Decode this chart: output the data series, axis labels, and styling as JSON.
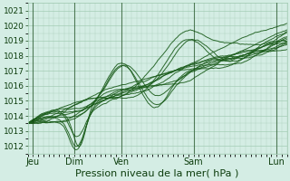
{
  "xlabel": "Pression niveau de la mer( hPa )",
  "ylim": [
    1011.5,
    1021.5
  ],
  "yticks": [
    1012,
    1013,
    1014,
    1015,
    1016,
    1017,
    1018,
    1019,
    1020,
    1021
  ],
  "xlim": [
    0,
    100
  ],
  "xtick_positions": [
    2,
    18,
    36,
    64,
    96
  ],
  "xtick_labels": [
    "Jeu",
    "Dim",
    "Ven",
    "Sam",
    "Lun"
  ],
  "bg_color": "#d4ede4",
  "grid_color": "#9fc9b0",
  "line_color": "#1a5c1a",
  "line_color_dark": "#0d3d0d",
  "xlabel_fontsize": 8,
  "ytick_fontsize": 6.5,
  "xtick_fontsize": 7
}
